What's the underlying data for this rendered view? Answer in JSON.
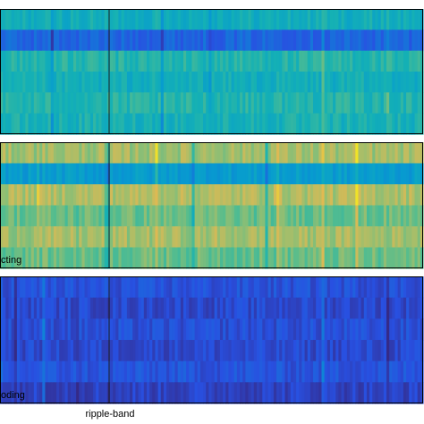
{
  "chart_data": [
    {
      "type": "heatmap",
      "panel_label": "",
      "rows": 6,
      "row_base_levels": [
        0.55,
        0.22,
        0.6,
        0.55,
        0.6,
        0.57
      ],
      "colormap": "parula",
      "grid": false
    },
    {
      "type": "heatmap",
      "panel_label": "cting",
      "rows": 6,
      "row_base_levels": [
        0.8,
        0.45,
        0.82,
        0.72,
        0.8,
        0.72
      ],
      "colormap": "parula",
      "grid": false
    },
    {
      "type": "heatmap",
      "panel_label": "oding",
      "rows": 6,
      "row_base_levels": [
        0.15,
        0.12,
        0.14,
        0.12,
        0.16,
        0.1
      ],
      "colormap": "parula",
      "grid": false
    }
  ],
  "xaxis": {
    "label": "ripple-band",
    "marker_line": true
  }
}
